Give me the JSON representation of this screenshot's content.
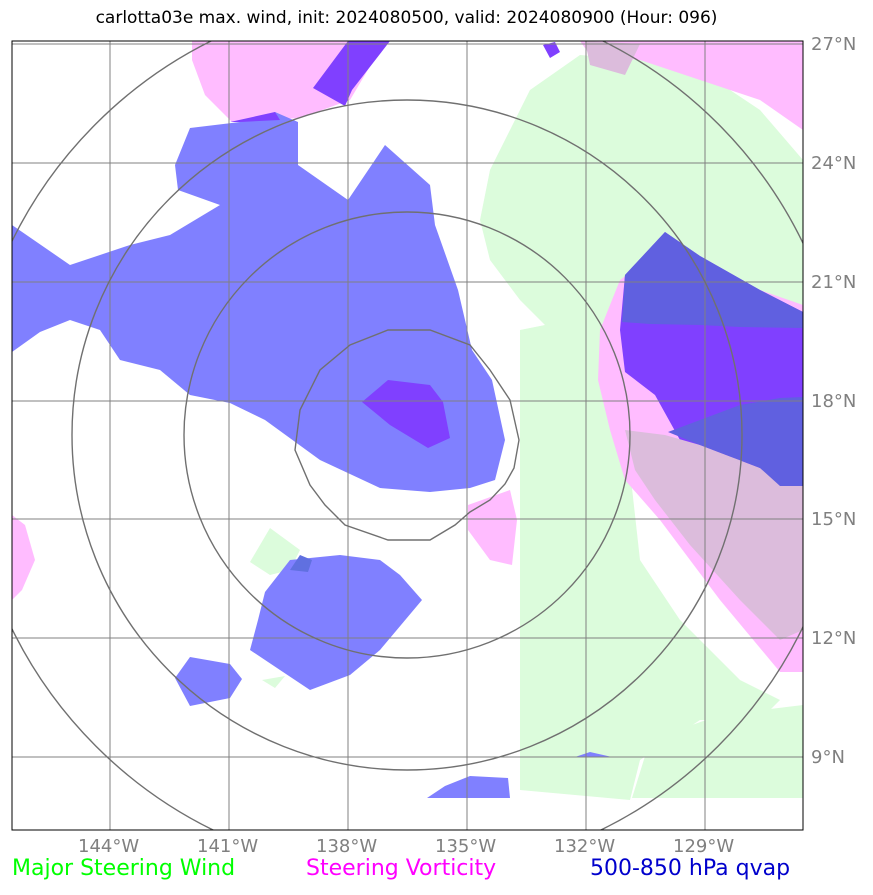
{
  "title": "carlotta03e max. wind, init: 2024080500, valid: 2024080900 (Hour: 096)",
  "lat_labels": [
    "27°N",
    "24°N",
    "21°N",
    "18°N",
    "15°N",
    "12°N",
    "9°N"
  ],
  "lon_labels": [
    "144°W",
    "141°W",
    "138°W",
    "135°W",
    "132°W",
    "129°W"
  ],
  "legend": {
    "wind": "Major Steering Wind",
    "vorticity": "Steering Vorticity",
    "qvap": "500-850 hPa qvap"
  },
  "colors": {
    "wind": "#00ff00",
    "vorticity": "#ff00ff",
    "qvap": "#0000cc",
    "grid": "#808080"
  }
}
